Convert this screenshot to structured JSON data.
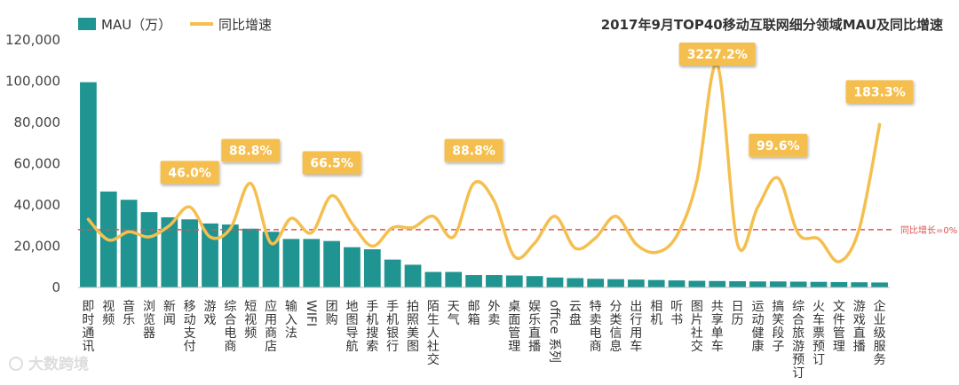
{
  "chart_data": {
    "type": "bar+line",
    "title": "2017年9月TOP40移动互联网细分领域MAU及同比增速",
    "legend": [
      {
        "name": "MAU（万）",
        "kind": "bar",
        "color": "#1f9490"
      },
      {
        "name": "同比增速",
        "kind": "line",
        "color": "#f5bf4f"
      }
    ],
    "ylim": [
      0,
      120000
    ],
    "yticks": [
      "0",
      "20,000",
      "40,000",
      "60,000",
      "80,000",
      "100,000",
      "120,000"
    ],
    "ytick_values": [
      0,
      20000,
      40000,
      60000,
      80000,
      100000,
      120000
    ],
    "categories": [
      "即时通讯",
      "视频",
      "音乐",
      "浏览器",
      "新闻",
      "移动支付",
      "游戏",
      "综合电商",
      "短视频",
      "应用商店",
      "输入法",
      "WIFI",
      "团购",
      "地图导航",
      "手机搜索",
      "手机银行",
      "拍照美图",
      "陌生人社交",
      "天气",
      "邮箱",
      "外卖",
      "桌面管理",
      "娱乐直播",
      "office 系列",
      "云盘",
      "特卖电商",
      "分类信息",
      "出行用车",
      "相机",
      "听书",
      "图片社交",
      "共享单车",
      "日历",
      "运动健康",
      "搞笑段子",
      "综合旅游预订",
      "火车票预订",
      "文件管理",
      "游戏直播",
      "企业级服务"
    ],
    "series": [
      {
        "name": "MAU（万）",
        "kind": "bar",
        "values": [
          99500,
          46500,
          42500,
          36500,
          34000,
          33000,
          31000,
          30500,
          28500,
          27000,
          23500,
          23500,
          22500,
          19500,
          18500,
          13500,
          11000,
          7500,
          7500,
          6000,
          6000,
          5800,
          5500,
          4800,
          4500,
          4200,
          4000,
          3800,
          3600,
          3400,
          3200,
          3100,
          3000,
          2900,
          2900,
          2800,
          2700,
          2600,
          2500,
          2400
        ]
      },
      {
        "name": "同比增速",
        "kind": "line",
        "y_units": "plotted on MAU axis scale",
        "values": [
          33000,
          23000,
          27000,
          24500,
          30000,
          39000,
          24500,
          28500,
          50500,
          21500,
          33500,
          26500,
          44500,
          31000,
          20000,
          29000,
          29000,
          34500,
          24500,
          50500,
          42000,
          15000,
          21500,
          34500,
          19000,
          24000,
          34500,
          21000,
          17000,
          25000,
          52000,
          108000,
          21000,
          39000,
          53000,
          26000,
          23500,
          12500,
          28500,
          79000
        ]
      }
    ],
    "callouts": [
      {
        "text": "46.0%",
        "index": 5
      },
      {
        "text": "88.8%",
        "index": 8
      },
      {
        "text": "66.5%",
        "index": 12
      },
      {
        "text": "88.8%",
        "index": 19
      },
      {
        "text": "3227.2%",
        "index": 31
      },
      {
        "text": "99.6%",
        "index": 34
      },
      {
        "text": "183.3%",
        "index": 39
      }
    ],
    "reference_line": {
      "label": "同比增长=0%",
      "value": 28000,
      "color": "#d9534f"
    }
  },
  "watermark": "大数跨境"
}
